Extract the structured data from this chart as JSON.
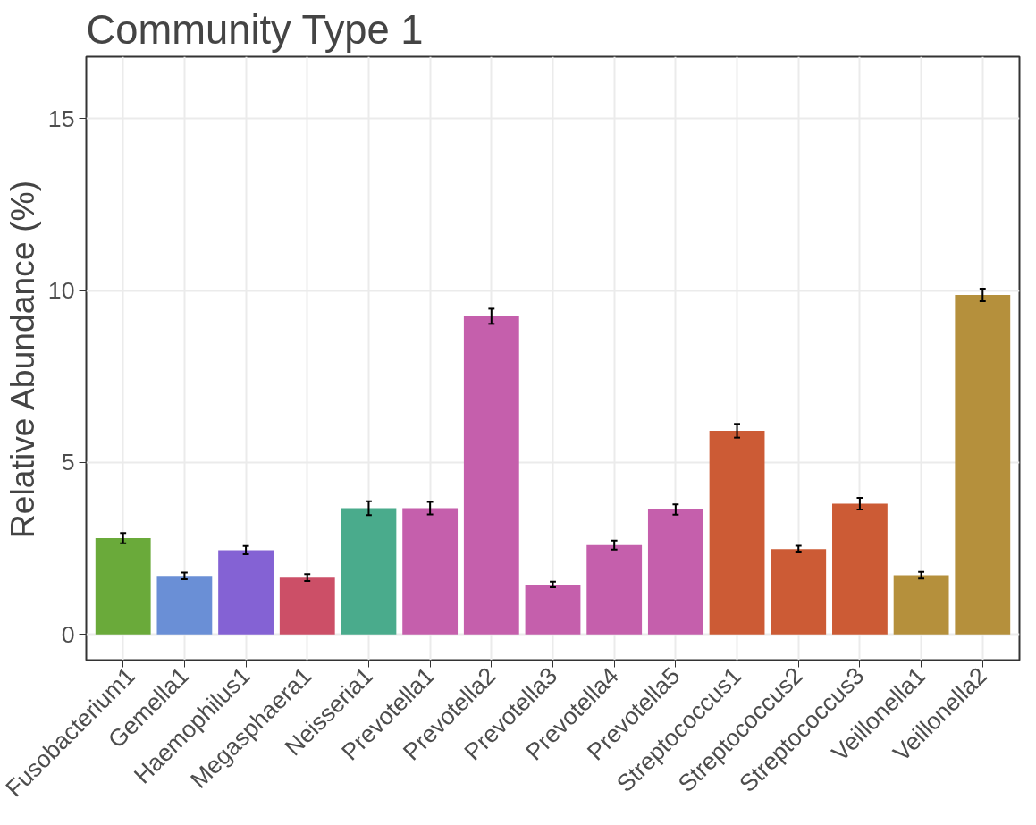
{
  "chart_data": {
    "type": "bar",
    "title": "Community Type 1",
    "ylabel": "Relative Abundance (%)",
    "categories": [
      "Fusobacterium1",
      "Gemella1",
      "Haemophilus1",
      "Megasphaera1",
      "Neisseria1",
      "Prevotella1",
      "Prevotella2",
      "Prevotella3",
      "Prevotella4",
      "Prevotella5",
      "Streptococcus1",
      "Streptococcus2",
      "Streptococcus3",
      "Veillonella1",
      "Veillonella2"
    ],
    "values": [
      2.8,
      1.7,
      2.45,
      1.65,
      3.67,
      3.67,
      9.25,
      1.45,
      2.6,
      3.63,
      5.92,
      2.48,
      3.8,
      1.72,
      9.87
    ],
    "errors": [
      0.15,
      0.1,
      0.12,
      0.1,
      0.2,
      0.18,
      0.22,
      0.08,
      0.13,
      0.15,
      0.2,
      0.1,
      0.17,
      0.1,
      0.18
    ],
    "colors": [
      "#6aaa3a",
      "#6a8fd6",
      "#8462d4",
      "#cc4f67",
      "#4aab8c",
      "#c55fac",
      "#c55fac",
      "#c55fac",
      "#c55fac",
      "#c55fac",
      "#cc5b35",
      "#cc5b35",
      "#cc5b35",
      "#b5903c",
      "#b5903c"
    ],
    "ylim": [
      -0.75,
      16.8
    ],
    "yticks": [
      0,
      5,
      10,
      15
    ],
    "grid": true
  }
}
